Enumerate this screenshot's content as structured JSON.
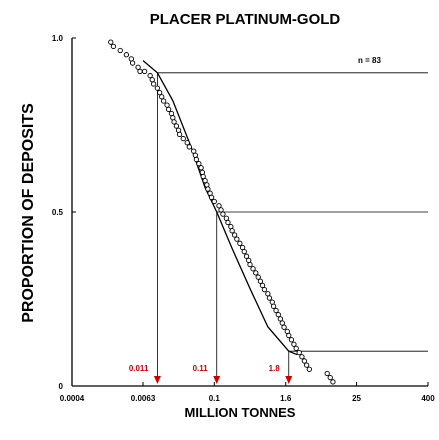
{
  "chart_data": {
    "type": "scatter",
    "title": "PLACER PLATINUM-GOLD",
    "xlabel": "MILLION TONNES",
    "ylabel": "PROPORTION OF DEPOSITS",
    "x_scale": "log",
    "xlim": [
      0.0004,
      400
    ],
    "ylim": [
      0,
      1
    ],
    "x_ticks": [
      "0.0004",
      "0.0063",
      "0.1",
      "1.6",
      "25",
      "400"
    ],
    "y_ticks": [
      "0",
      "0.5",
      "1.0"
    ],
    "n_label": "n = 83",
    "colors": {
      "axis": "#000000",
      "annotation": "#cc0000",
      "points": "#000000"
    },
    "series": [
      {
        "type": "scatter",
        "points": [
          [
            0.0018,
            0.988
          ],
          [
            0.002,
            0.976
          ],
          [
            0.0026,
            0.964
          ],
          [
            0.0033,
            0.952
          ],
          [
            0.004,
            0.94
          ],
          [
            0.0042,
            0.928
          ],
          [
            0.0052,
            0.916
          ],
          [
            0.0056,
            0.904
          ],
          [
            0.0067,
            0.904
          ],
          [
            0.0083,
            0.892
          ],
          [
            0.009,
            0.88
          ],
          [
            0.0095,
            0.868
          ],
          [
            0.011,
            0.856
          ],
          [
            0.012,
            0.843
          ],
          [
            0.013,
            0.831
          ],
          [
            0.014,
            0.819
          ],
          [
            0.016,
            0.807
          ],
          [
            0.017,
            0.795
          ],
          [
            0.019,
            0.783
          ],
          [
            0.02,
            0.771
          ],
          [
            0.021,
            0.759
          ],
          [
            0.023,
            0.747
          ],
          [
            0.025,
            0.735
          ],
          [
            0.026,
            0.723
          ],
          [
            0.03,
            0.711
          ],
          [
            0.035,
            0.699
          ],
          [
            0.038,
            0.687
          ],
          [
            0.045,
            0.675
          ],
          [
            0.048,
            0.663
          ],
          [
            0.05,
            0.651
          ],
          [
            0.055,
            0.639
          ],
          [
            0.06,
            0.627
          ],
          [
            0.063,
            0.614
          ],
          [
            0.065,
            0.602
          ],
          [
            0.07,
            0.59
          ],
          [
            0.075,
            0.578
          ],
          [
            0.078,
            0.566
          ],
          [
            0.085,
            0.554
          ],
          [
            0.09,
            0.542
          ],
          [
            0.1,
            0.53
          ],
          [
            0.12,
            0.518
          ],
          [
            0.13,
            0.506
          ],
          [
            0.14,
            0.494
          ],
          [
            0.16,
            0.482
          ],
          [
            0.17,
            0.47
          ],
          [
            0.19,
            0.458
          ],
          [
            0.2,
            0.446
          ],
          [
            0.22,
            0.434
          ],
          [
            0.24,
            0.422
          ],
          [
            0.27,
            0.41
          ],
          [
            0.3,
            0.398
          ],
          [
            0.32,
            0.386
          ],
          [
            0.35,
            0.373
          ],
          [
            0.38,
            0.361
          ],
          [
            0.4,
            0.349
          ],
          [
            0.45,
            0.337
          ],
          [
            0.5,
            0.325
          ],
          [
            0.55,
            0.313
          ],
          [
            0.6,
            0.301
          ],
          [
            0.65,
            0.289
          ],
          [
            0.7,
            0.277
          ],
          [
            0.8,
            0.265
          ],
          [
            0.85,
            0.253
          ],
          [
            0.95,
            0.241
          ],
          [
            1.0,
            0.229
          ],
          [
            1.1,
            0.217
          ],
          [
            1.2,
            0.205
          ],
          [
            1.3,
            0.193
          ],
          [
            1.4,
            0.181
          ],
          [
            1.5,
            0.169
          ],
          [
            1.7,
            0.157
          ],
          [
            1.8,
            0.145
          ],
          [
            2.0,
            0.133
          ],
          [
            2.2,
            0.12
          ],
          [
            2.4,
            0.108
          ],
          [
            2.7,
            0.096
          ],
          [
            3.0,
            0.084
          ],
          [
            3.3,
            0.072
          ],
          [
            3.6,
            0.06
          ],
          [
            4.0,
            0.048
          ],
          [
            8.0,
            0.036
          ],
          [
            9.0,
            0.024
          ],
          [
            10.0,
            0.012
          ]
        ]
      },
      {
        "type": "line",
        "points": [
          [
            0.0063,
            0.935
          ],
          [
            0.011,
            0.9
          ],
          [
            0.02,
            0.82
          ],
          [
            0.04,
            0.69
          ],
          [
            0.07,
            0.57
          ],
          [
            0.11,
            0.5
          ],
          [
            0.2,
            0.395
          ],
          [
            0.4,
            0.28
          ],
          [
            0.8,
            0.17
          ],
          [
            1.8,
            0.1
          ],
          [
            2.5,
            0.09
          ]
        ]
      }
    ],
    "annotations": [
      {
        "label": "0.011",
        "x": 0.011,
        "level": 0.9
      },
      {
        "label": "0.11",
        "x": 0.11,
        "level": 0.5
      },
      {
        "label": "1.8",
        "x": 1.8,
        "level": 0.1
      }
    ]
  }
}
